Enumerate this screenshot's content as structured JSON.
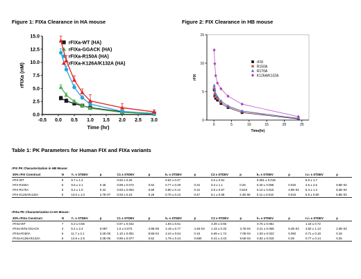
{
  "chart_data": [
    {
      "type": "line",
      "title": "Figure 1: FIXa Clearance in HA mouse",
      "xlabel": "Time (hr)",
      "ylabel": "rFIXa (nM)",
      "xlim": [
        -0.5,
        3.0
      ],
      "ylim": [
        0,
        15
      ],
      "xticks": [
        "-0.5",
        "0.0",
        "0.5",
        "1.0",
        "1.5",
        "2.0",
        "2.5",
        "3.0"
      ],
      "yticks": [
        "0.0",
        "2.5",
        "5.0",
        "7.5",
        "10.0",
        "12.5",
        "15.0"
      ],
      "legend_position": "top-right",
      "series": [
        {
          "name": "rFIXa-WT (HA)",
          "color": "#1a1a1a",
          "marker": "square",
          "x": [
            0.08,
            0.25,
            0.5,
            0.75,
            1.0,
            2.0,
            3.0
          ],
          "y": [
            3.1,
            2.6,
            2.1,
            1.7,
            1.3,
            0.5,
            0.2
          ],
          "err": [
            0.4,
            0.4,
            0.3,
            0.3,
            0.2,
            0.1,
            0.1
          ]
        },
        {
          "name": "rFIXa-GGACK (HA)",
          "color": "#4caf50",
          "marker": "triangle",
          "x": [
            0.08,
            0.25,
            0.5,
            0.75,
            1.0,
            2.0,
            3.0
          ],
          "y": [
            5.2,
            3.7,
            2.5,
            1.7,
            1.2,
            0.4,
            0.1
          ],
          "err": [
            0.5,
            0.4,
            0.3,
            0.2,
            0.2,
            0.1,
            0.1
          ]
        },
        {
          "name": "rFIXa-R150A (HA)",
          "color": "#29a3d8",
          "marker": "circle",
          "x": [
            0.08,
            0.25,
            0.5,
            0.75,
            1.0,
            2.0,
            3.0
          ],
          "y": [
            11.8,
            8.6,
            5.2,
            3.2,
            2.0,
            0.6,
            0.2
          ],
          "err": [
            0.8,
            0.7,
            0.5,
            0.4,
            0.3,
            0.2,
            0.1
          ]
        },
        {
          "name": "rFIXa-K126A/K132A (HA)",
          "color": "#e32222",
          "marker": "triangle",
          "x": [
            0.08,
            0.25,
            0.5,
            0.75,
            1.0,
            2.0,
            3.0
          ],
          "y": [
            14.1,
            10.3,
            6.6,
            4.2,
            2.6,
            1.3,
            0.5
          ],
          "err": [
            0.9,
            1.0,
            0.8,
            0.7,
            1.2,
            0.8,
            0.4
          ]
        }
      ]
    },
    {
      "type": "line",
      "title": "Figure 2: FIX Clearance in HB mouse",
      "xlabel": "Time(hr)",
      "ylabel": "rFIX",
      "xlim": [
        -2,
        27
      ],
      "ylim": [
        0,
        15
      ],
      "xticks": [
        "0",
        "5",
        "10",
        "15",
        "20",
        "25"
      ],
      "yticks": [
        "0",
        "5",
        "10",
        "15"
      ],
      "legend_position": "right",
      "series": [
        {
          "name": "rFIX",
          "color": "#1a1a1a",
          "marker": "square",
          "x": [
            0.08,
            0.25,
            0.5,
            1,
            2,
            4,
            8,
            24
          ],
          "y": [
            5.3,
            4.2,
            3.8,
            3.5,
            2.9,
            2.2,
            1.3,
            0.2
          ]
        },
        {
          "name": "R150A",
          "color": "#e35050",
          "marker": "circle",
          "x": [
            0.08,
            0.25,
            0.5,
            1,
            2,
            4,
            8,
            24
          ],
          "y": [
            5.6,
            4.6,
            4.1,
            3.8,
            3.2,
            2.4,
            1.5,
            0.3
          ]
        },
        {
          "name": "R170A",
          "color": "#4a6fd8",
          "marker": "triangle",
          "x": [
            0.08,
            0.25,
            0.5,
            1,
            2,
            4,
            8,
            24
          ],
          "y": [
            6.1,
            5.2,
            4.6,
            4.1,
            3.4,
            2.5,
            1.6,
            0.3
          ]
        },
        {
          "name": "K126A/K132A",
          "color": "#b040b8",
          "marker": "diamond",
          "x": [
            0.08,
            0.25,
            0.5,
            1,
            2,
            4,
            8,
            24
          ],
          "y": [
            12.3,
            9.9,
            7.8,
            6.5,
            5.5,
            4.2,
            2.8,
            0.6
          ]
        }
      ]
    }
  ],
  "table": {
    "title": "Table 1:  PK Parameters for Human FIX and FIXa variants",
    "sections": [
      {
        "title": "rFIX PK Characterization in HB Mouse:",
        "headers": [
          "30% rFIX Construct",
          "N",
          "Y₀ ± STDEV",
          "p",
          "C1 ± STDEV",
          "p",
          "k₁ ± STDEV",
          "p",
          "C2 ± STDEV",
          "p",
          "k₂ ± STDEV",
          "p",
          "t₁/₂ ± STDEV",
          "p"
        ],
        "rows": [
          [
            "rFIX-WT",
            "8",
            "5.7 ± 1.3",
            "",
            "0.92 ± 0.25",
            "",
            "0.62 ± 0.27",
            "",
            "2.6 ± 0.81",
            "",
            "0.081 ± 0.018",
            "",
            "8.9 ± 1.7",
            ""
          ],
          [
            "rFIX-R150A",
            "6",
            "6.5 ± 2.1",
            "0.45",
            "0.89 ± 0.072",
            "0.52",
            "0.77 ± 0.28",
            "0.34",
            "3.3 ± 1.1",
            "0.26",
            "0.20 ± 0.099",
            "0.032",
            "4.5 ± 2.6",
            "5.8E-03"
          ],
          [
            "rFIX-R170A",
            "6",
            "6.2 ± 1.0",
            "0.44",
            "0.83 ± 0.064",
            "0.80",
            "0.80 ± 0.12",
            "0.12",
            "2.8 ± 0.57",
            "0.610",
            "0.14 ± 0.016",
            "4.9E-03",
            "5.3 ± 1.4",
            "8.3E-04"
          ],
          [
            "rFIX-K126A/K132A",
            "5",
            "13.0 ± 1.0",
            "2.7E-07",
            "0.93 ± 0.15",
            "0.26",
            "0.70 ± 0.13",
            "0.47",
            "6.1 ± 0.58",
            "2.4E-06",
            "0.11 ± 0.016",
            "0.015",
            "6.5 ± 0.90",
            "5.8E-03"
          ]
        ]
      },
      {
        "title": "rFIXa PK Characterization in HA Mouse:",
        "headers": [
          "30% rFIXa Construct",
          "N",
          "Y₀ ± STDEV",
          "p",
          "C1 ± STDEV",
          "p",
          "k₁ ± STDEV",
          "p",
          "C2 ± STDEV",
          "p",
          "k₂ ± STDEV",
          "p",
          "t₁/₂ ± STDEV",
          "p"
        ],
        "rows": [
          [
            "rFIXa-WT",
            "7",
            "6.2 ± 0.55",
            "",
            "0.97 ± 0.042",
            "",
            "1.94 ± 0.61",
            "",
            "3.39 ± 0.65",
            "",
            "0.75 ± 0.081",
            "",
            "1.18 ± 0.72",
            ""
          ],
          [
            "rFIXa-WTa-GGACK",
            "4",
            "5.4 ± 2.4",
            "0.087",
            "1.6 ± 0.073",
            "3.9E-08",
            "4.19 ± 0.77",
            "4.4E-04",
            "1.43 ± 0.33",
            "3.7E-04",
            "0.21 ± 0.068",
            "9.2E-03",
            "3.50 ± 1.13",
            "2.3E-03"
          ],
          [
            "rFIXa-R150A",
            "6",
            "11.7 ± 2.1",
            "3.2E-05",
            "1.10 ± 0.051",
            "8.5E-04",
            "2.44 ± 0.54",
            "0.15",
            "6.69 ± 1.74",
            "7.0E-04",
            "1.03 ± 0.023",
            "0.092",
            "0.71 ± 0.18",
            "0.15"
          ],
          [
            "rFIXa-K126A/K132A",
            "5",
            "14.9 ± 2.5",
            "3.3E-06",
            "0.99 ± 0.077",
            "0.62",
            "1.79 ± 0.44",
            "0.660",
            "9.41 ± 3.43",
            "9.6E-04",
            "0.92 ± 0.018",
            "0.29",
            "0.77 ± 0.14",
            "0.25"
          ]
        ]
      }
    ]
  }
}
